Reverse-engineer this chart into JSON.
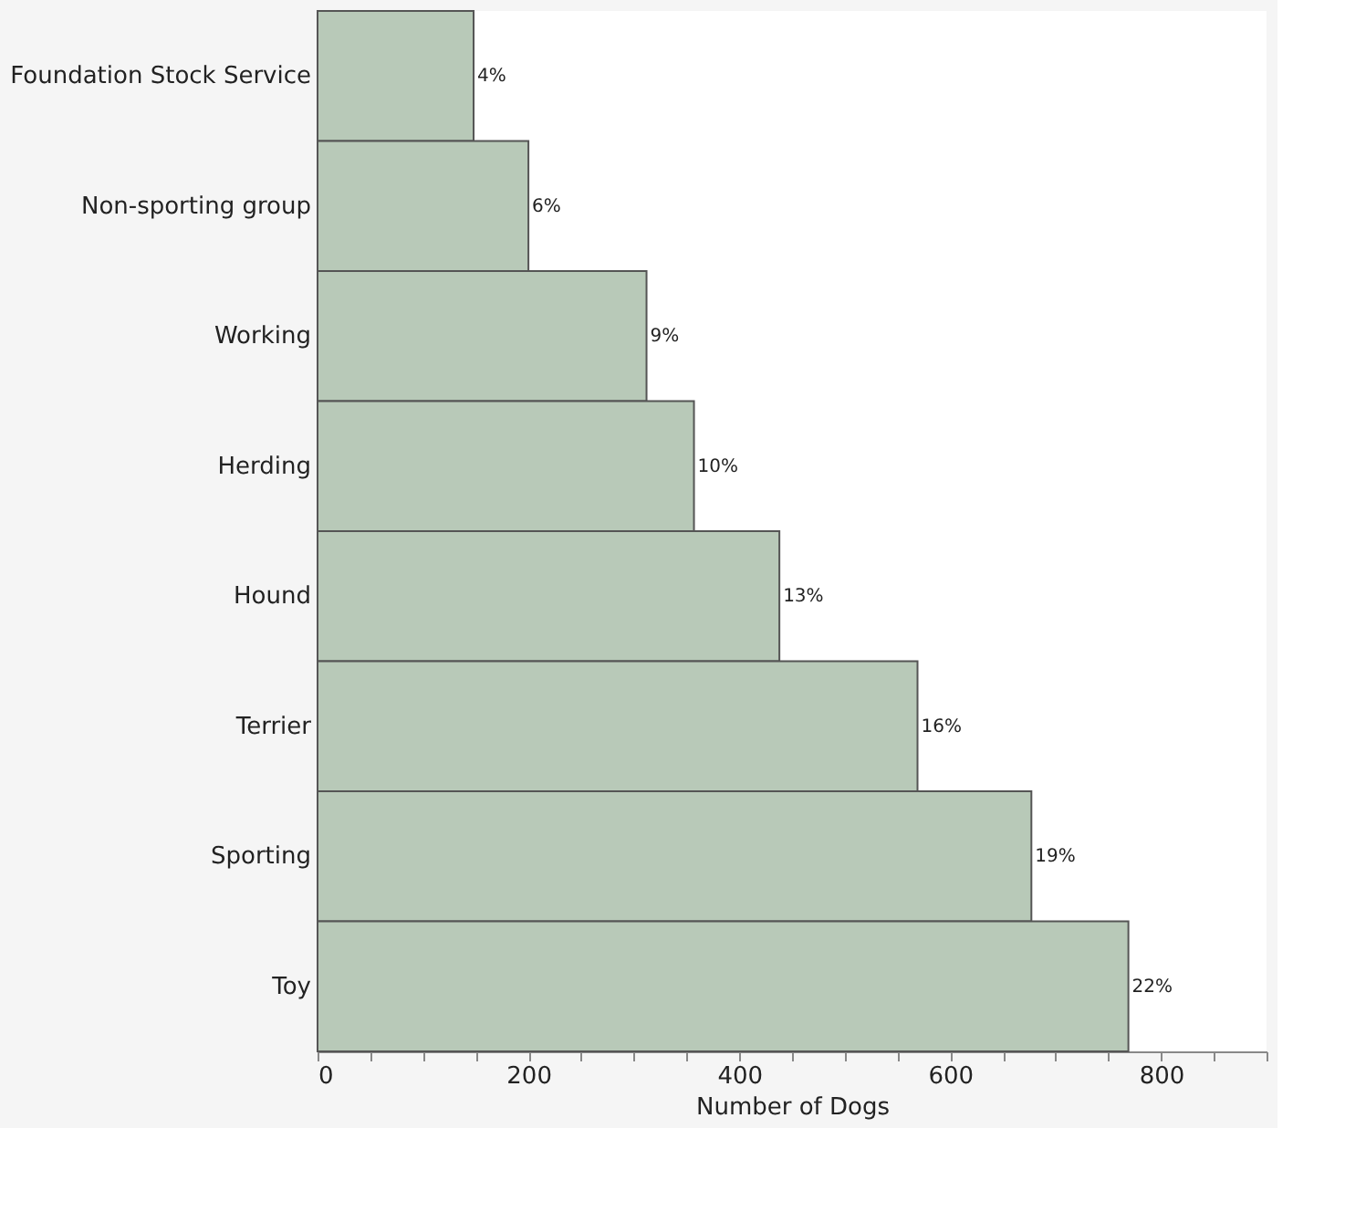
{
  "chart_data": {
    "type": "bar",
    "orientation": "horizontal",
    "xlabel": "Number of Dogs",
    "categories": [
      "Foundation Stock Service",
      "Non-sporting group",
      "Working",
      "Herding",
      "Hound",
      "Terrier",
      "Sporting",
      "Toy"
    ],
    "values": [
      148,
      200,
      312,
      357,
      438,
      569,
      677,
      769
    ],
    "annotations": [
      {
        "text": "4%",
        "x": 148,
        "y": "Foundation Stock Service"
      },
      {
        "text": "6%",
        "x": 200,
        "y": "Non-sporting group"
      },
      {
        "text": "9%",
        "x": 312,
        "y": "Working"
      },
      {
        "text": "10%",
        "x": 357,
        "y": "Herding"
      },
      {
        "text": "13%",
        "x": 438,
        "y": "Hound"
      },
      {
        "text": "16%",
        "x": 569,
        "y": "Terrier"
      },
      {
        "text": "19%",
        "x": 677,
        "y": "Sporting"
      },
      {
        "text": "22%",
        "x": 769,
        "y": "Toy"
      }
    ],
    "color": "#b8c9b8",
    "xlim": [
      0,
      900
    ],
    "xticks": [
      0,
      {
        "value": 50,
        "label": null
      },
      {
        "value": 100,
        "label": null
      },
      {
        "value": 150,
        "label": null
      },
      200,
      {
        "value": 250,
        "label": null
      },
      {
        "value": 300,
        "label": null
      },
      {
        "value": 350,
        "label": null
      },
      400,
      {
        "value": 450,
        "label": null
      },
      {
        "value": 500,
        "label": null
      },
      {
        "value": 550,
        "label": null
      },
      600,
      {
        "value": 650,
        "label": null
      },
      {
        "value": 700,
        "label": null
      },
      {
        "value": 750,
        "label": null
      },
      800,
      {
        "value": 850,
        "label": null
      },
      {
        "value": 900,
        "label": null
      }
    ],
    "grid": false
  }
}
